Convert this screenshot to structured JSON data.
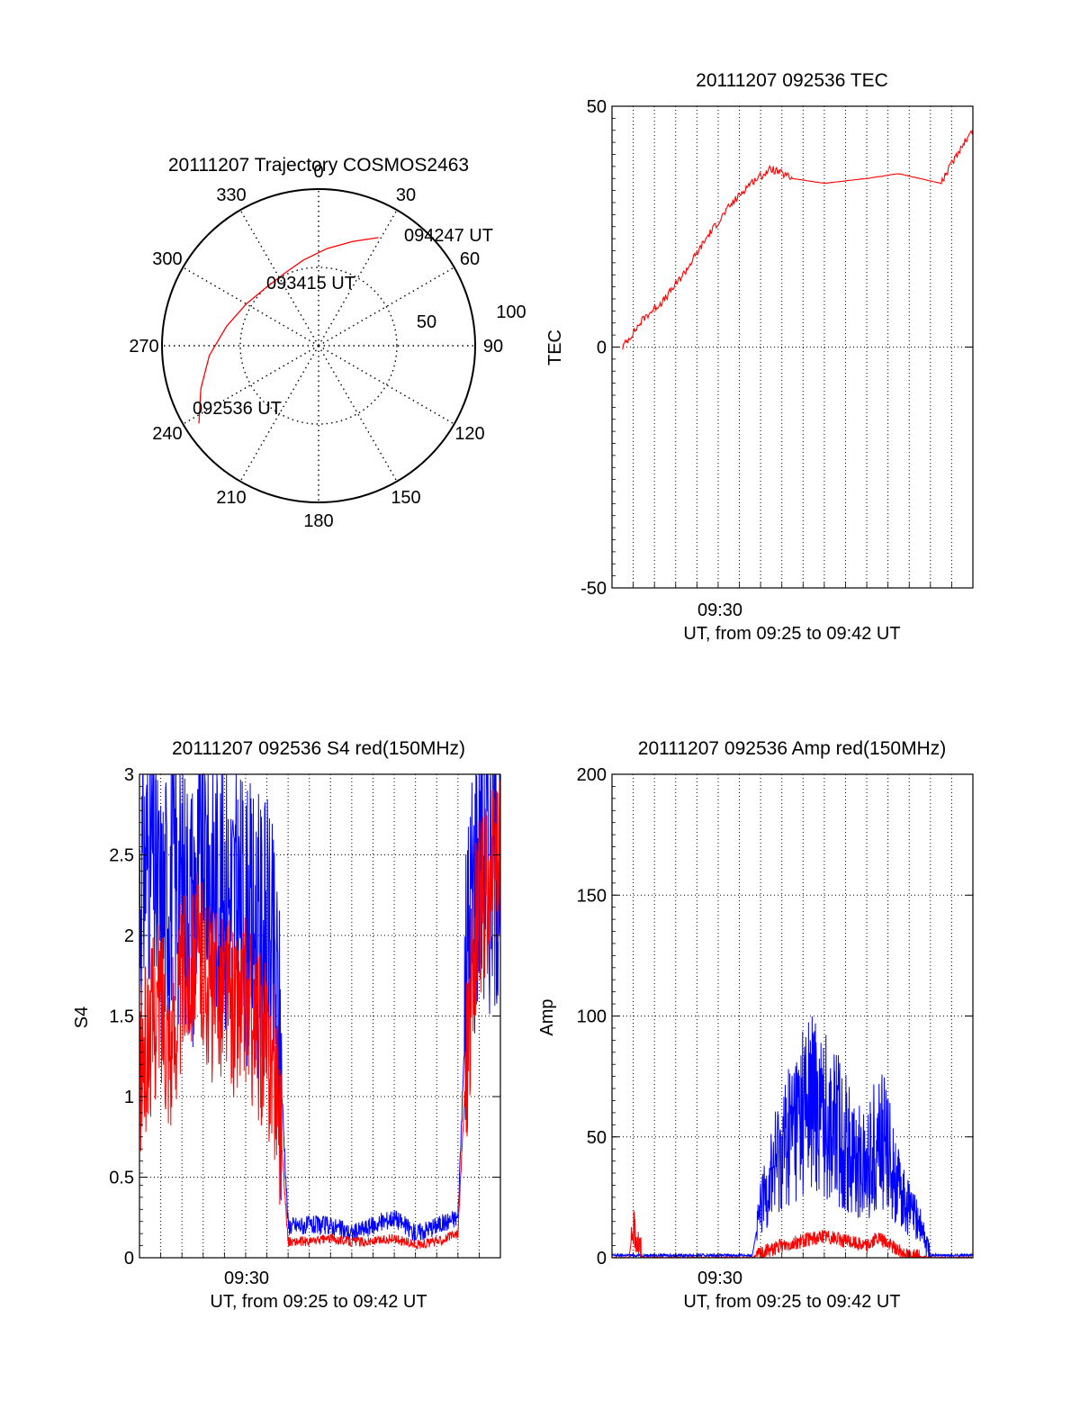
{
  "colors": {
    "red": "#ff0000",
    "blue": "#0000ff",
    "axis": "#000000",
    "grid": "#000000"
  },
  "chart_data": [
    {
      "id": "polar",
      "type": "scatter",
      "title": "20111207 Trajectory COSMOS2463",
      "azimuth_labels": [
        "0",
        "30",
        "60",
        "90",
        "120",
        "150",
        "180",
        "210",
        "240",
        "270",
        "300",
        "330"
      ],
      "radial_labels": [
        "50",
        "100"
      ],
      "annotations": [
        "094247 UT",
        "093415 UT",
        "092536 UT"
      ],
      "series": [
        {
          "color": "red",
          "points": [
            {
              "az": 237,
              "el": 8
            },
            {
              "az": 250,
              "el": 18
            },
            {
              "az": 265,
              "el": 27
            },
            {
              "az": 282,
              "el": 36
            },
            {
              "az": 300,
              "el": 42
            },
            {
              "az": 318,
              "el": 45
            },
            {
              "az": 335,
              "el": 44
            },
            {
              "az": 350,
              "el": 40
            },
            {
              "az": 5,
              "el": 34
            },
            {
              "az": 18,
              "el": 27
            },
            {
              "az": 29,
              "el": 19
            }
          ]
        }
      ]
    },
    {
      "id": "tec",
      "type": "line",
      "title": "20111207 092536 TEC",
      "xlabel": "UT, from 09:25 to 09:42 UT",
      "ylabel": "TEC",
      "xtick_labels": [
        "09:30"
      ],
      "xlim": [
        0,
        17
      ],
      "ylim": [
        -50,
        50
      ],
      "yticks": [
        "50",
        "0",
        "-50"
      ],
      "series": [
        {
          "color": "red",
          "x": [
            0.5,
            1.5,
            2.5,
            3.5,
            4.5,
            5.5,
            6.5,
            7.5,
            8.5,
            10.0,
            12.0,
            13.5,
            14.5,
            15.5,
            16.5,
            17.0
          ],
          "y": [
            0,
            6,
            10,
            16,
            23,
            29,
            34,
            37,
            35,
            34,
            35,
            36,
            35,
            34,
            42,
            45
          ]
        }
      ]
    },
    {
      "id": "s4",
      "type": "line",
      "title": "20111207 092536 S4 red(150MHz)",
      "xlabel": "UT, from 09:25 to 09:42 UT",
      "ylabel": "S4",
      "xtick_labels": [
        "09:30"
      ],
      "xlim": [
        0,
        17
      ],
      "ylim": [
        0,
        3
      ],
      "yticks": [
        "3",
        "2.5",
        "2",
        "1.5",
        "1",
        "0.5",
        "0"
      ],
      "series": [
        {
          "color": "blue",
          "x": [
            0.0,
            0.5,
            1.0,
            1.5,
            2.0,
            2.5,
            3.0,
            3.5,
            4.0,
            4.5,
            5.0,
            5.5,
            6.0,
            6.5,
            7.0,
            8.0,
            9.0,
            10.0,
            11.0,
            12.0,
            13.0,
            14.0,
            15.0,
            15.5,
            16.0,
            16.5,
            17.0
          ],
          "y": [
            2.3,
            2.6,
            2.1,
            2.4,
            2.3,
            2.2,
            2.5,
            2.4,
            2.3,
            2.2,
            2.1,
            2.0,
            2.0,
            1.6,
            0.2,
            0.2,
            0.2,
            0.15,
            0.2,
            0.25,
            0.15,
            0.2,
            0.25,
            2.0,
            2.6,
            2.5,
            2.6
          ]
        },
        {
          "color": "red",
          "x": [
            0.0,
            0.5,
            1.0,
            1.5,
            2.0,
            2.5,
            3.0,
            3.5,
            4.0,
            4.5,
            5.0,
            5.5,
            6.0,
            6.5,
            7.0,
            8.0,
            9.0,
            10.0,
            11.0,
            12.0,
            13.0,
            14.0,
            15.0,
            15.5,
            16.0,
            16.5,
            17.0
          ],
          "y": [
            1.1,
            1.4,
            1.6,
            1.3,
            1.7,
            1.9,
            1.8,
            1.6,
            1.7,
            1.5,
            1.6,
            1.4,
            1.3,
            1.1,
            0.1,
            0.1,
            0.12,
            0.1,
            0.1,
            0.12,
            0.08,
            0.1,
            0.15,
            1.5,
            2.2,
            2.3,
            2.5
          ]
        }
      ]
    },
    {
      "id": "amp",
      "type": "line",
      "title": "20111207 092536 Amp red(150MHz)",
      "xlabel": "UT, from 09:25 to 09:42 UT",
      "ylabel": "Amp",
      "xtick_labels": [
        "09:30"
      ],
      "xlim": [
        0,
        17
      ],
      "ylim": [
        0,
        200
      ],
      "yticks": [
        "200",
        "150",
        "100",
        "50",
        "0"
      ],
      "series": [
        {
          "color": "blue",
          "x": [
            0,
            2,
            4,
            6,
            6.6,
            7.0,
            7.5,
            8.0,
            8.5,
            9.0,
            9.5,
            10.0,
            10.5,
            11.0,
            11.5,
            12.0,
            12.5,
            13.0,
            13.5,
            14.0,
            14.5,
            15.0,
            16.0,
            17.0
          ],
          "y": [
            1,
            1,
            1,
            1,
            1,
            20,
            35,
            45,
            55,
            62,
            65,
            60,
            55,
            48,
            40,
            38,
            50,
            45,
            28,
            20,
            14,
            1,
            1,
            1
          ]
        },
        {
          "color": "red",
          "x": [
            0,
            0.8,
            1.0,
            1.2,
            1.4,
            2,
            4,
            6.6,
            7.0,
            8.0,
            9.0,
            10.0,
            11.0,
            12.0,
            12.5,
            13.0,
            13.5,
            14.0,
            15.0,
            17.0
          ],
          "y": [
            0,
            0,
            12,
            8,
            0,
            0,
            0,
            0,
            2,
            5,
            7,
            9,
            7,
            5,
            8,
            6,
            3,
            1,
            0,
            0
          ]
        }
      ]
    }
  ]
}
